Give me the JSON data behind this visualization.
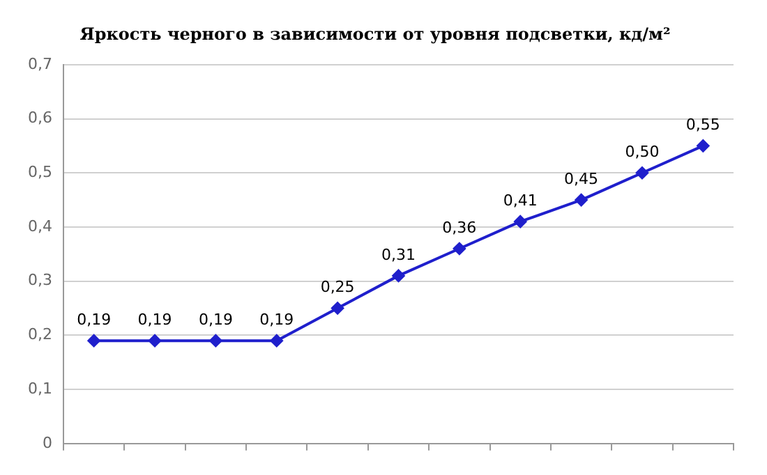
{
  "chart_data": {
    "type": "line",
    "title": "Яркость черного в зависимости от уровня подсветки, кд/м²",
    "categories": [
      null,
      null,
      null,
      null,
      null,
      null,
      null,
      null,
      null,
      null,
      null
    ],
    "series": [
      {
        "color": "#1f1fcc",
        "values": [
          0.19,
          0.19,
          0.19,
          0.19,
          0.25,
          0.31,
          0.36,
          0.41,
          0.45,
          0.5,
          0.55
        ],
        "value_labels": [
          "0,19",
          "0,19",
          "0,19",
          "0,19",
          "0,25",
          "0,31",
          "0,36",
          "0,41",
          "0,45",
          "0,50",
          "0,55"
        ]
      }
    ],
    "ylim": [
      0,
      0.7
    ],
    "yticks": [
      {
        "value": 0,
        "label": "0"
      },
      {
        "value": 0.1,
        "label": "0,1"
      },
      {
        "value": 0.2,
        "label": "0,2"
      },
      {
        "value": 0.3,
        "label": "0,3"
      },
      {
        "value": 0.4,
        "label": "0,4"
      },
      {
        "value": 0.5,
        "label": "0,5"
      },
      {
        "value": 0.6,
        "label": "0,6"
      },
      {
        "value": 0.7,
        "label": "0,7"
      }
    ],
    "grid": "y",
    "legend": false,
    "tick_labels": "y",
    "marker": "diamond",
    "line_style": "solid"
  }
}
